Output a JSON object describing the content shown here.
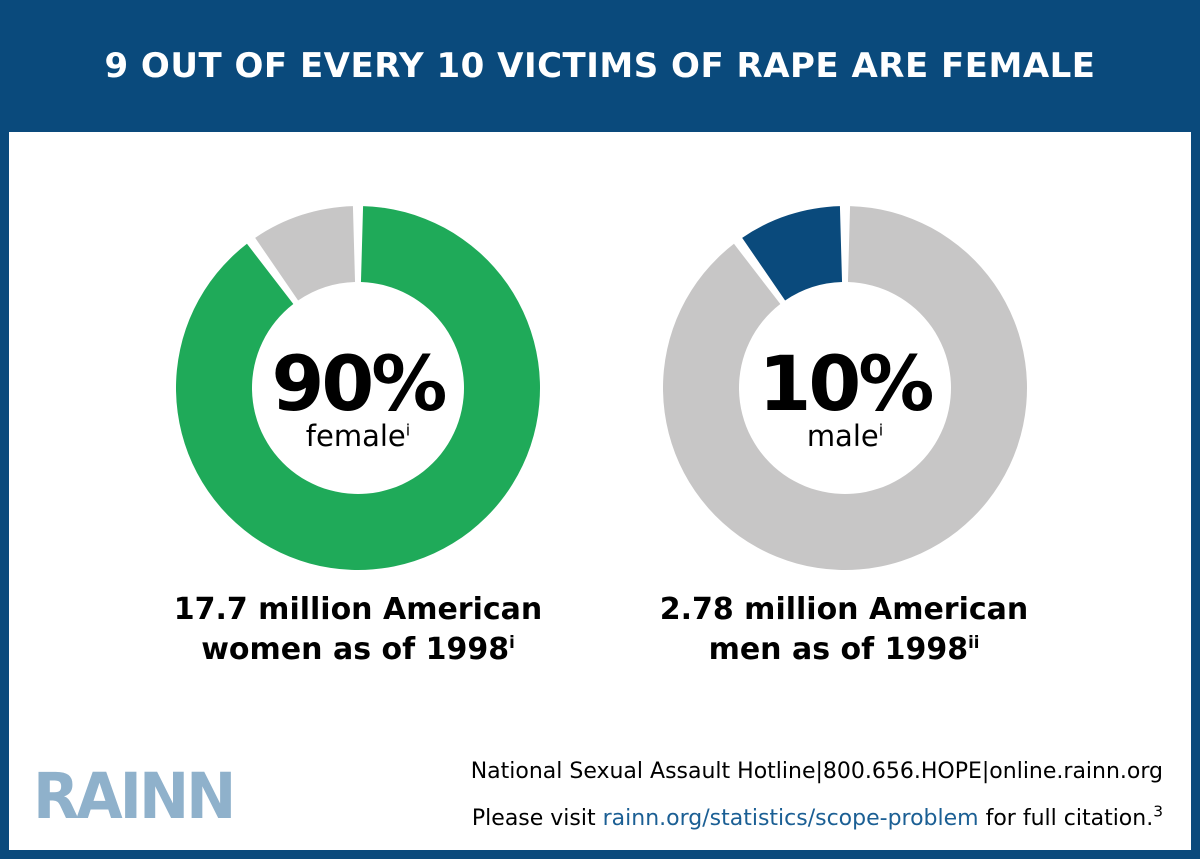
{
  "title": "9 OUT OF EVERY 10 VICTIMS OF RAPE ARE FEMALE",
  "colors": {
    "header_bg": "#0a4a7c",
    "female": "#1faa59",
    "male": "#0a4a7c",
    "remainder": "#c7c6c6"
  },
  "chart_data": [
    {
      "type": "pie",
      "variant": "donut",
      "highlight_value": 90,
      "remainder_value": 10,
      "center_value": "90%",
      "center_label": "female",
      "center_label_note": "i",
      "caption_line1": "17.7 million American",
      "caption_line2": "women as of 1998",
      "caption_note": "i"
    },
    {
      "type": "pie",
      "variant": "donut",
      "highlight_value": 10,
      "remainder_value": 90,
      "center_value": "10%",
      "center_label": "male",
      "center_label_note": "i",
      "caption_line1": "2.78 million American",
      "caption_line2": "men as of 1998",
      "caption_note": "ii"
    }
  ],
  "logo_text": "RAINN",
  "footer": {
    "hotline": "National Sexual Assault Hotline|800.656.HOPE|online.rainn.org",
    "visit_prefix": "Please visit ",
    "visit_link": "rainn.org/statistics/scope-problem",
    "visit_suffix": " for full citation.",
    "visit_note": "3"
  }
}
